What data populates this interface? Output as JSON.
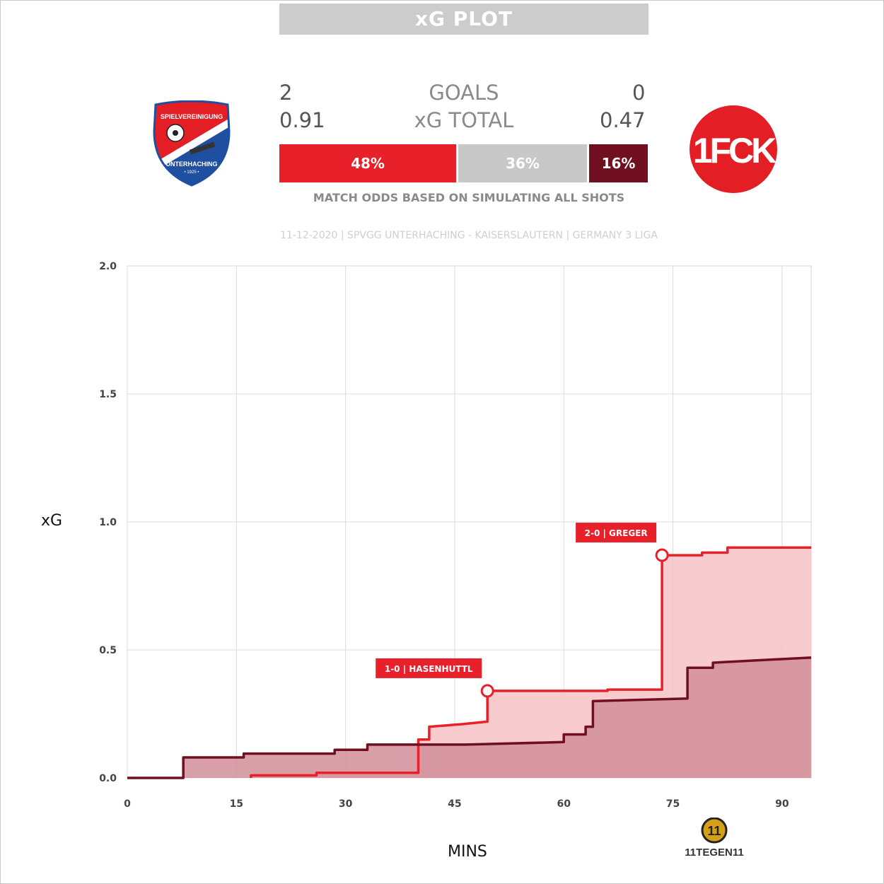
{
  "header": {
    "title": "xG PLOT"
  },
  "stats": {
    "home_goals": "2",
    "goals_label": "GOALS",
    "away_goals": "0",
    "home_xg": "0.91",
    "xg_label": "xG TOTAL",
    "away_xg": "0.47"
  },
  "odds": {
    "home_win": "48%",
    "draw": "36%",
    "away_win": "16%",
    "home_win_value": 48,
    "draw_value": 36,
    "away_win_value": 16,
    "caption": "MATCH ODDS BASED ON SIMULATING ALL SHOTS"
  },
  "match_info": "11-12-2020 | SPVGG UNTERHACHING - KAISERSLAUTERN | GERMANY 3 LIGA",
  "logos": {
    "home": {
      "name": "Unterhaching crest",
      "text_top": "SPIELVEREINIGUNG",
      "text_bottom": "UNTERHACHING",
      "year": "• 1925 •"
    },
    "away": {
      "name": "1. FC Kaiserslautern crest",
      "text": "1FCK"
    },
    "brand": {
      "name": "11tegen11 logo",
      "text": "11TEGEN11",
      "mark": "11"
    }
  },
  "colors": {
    "home": "#e8202a",
    "draw": "#c8c8c8",
    "away": "#6f0f20",
    "home_fill": "#f7c3c6",
    "away_fill": "#d28e99",
    "grid": "#dcdcdc"
  },
  "chart_data": {
    "type": "line",
    "xlabel": "MINS",
    "ylabel": "xG",
    "xlim": [
      0,
      94
    ],
    "ylim": [
      0,
      2
    ],
    "xticks": [
      0,
      15,
      30,
      45,
      60,
      75,
      90
    ],
    "yticks": [
      "0.0",
      "0.5",
      "1.0",
      "1.5",
      "2.0"
    ],
    "grid": true,
    "series": [
      {
        "team": "home",
        "step_points": [
          [
            17,
            0
          ],
          [
            17,
            0.01
          ],
          [
            26,
            0.01
          ],
          [
            26,
            0.02
          ],
          [
            40,
            0.02
          ],
          [
            40,
            0.15
          ],
          [
            41.5,
            0.15
          ],
          [
            41.5,
            0.2
          ],
          [
            46,
            0.21
          ],
          [
            49.5,
            0.22
          ],
          [
            49.5,
            0.34
          ],
          [
            66,
            0.34
          ],
          [
            66,
            0.345
          ],
          [
            73.5,
            0.345
          ],
          [
            73.5,
            0.87
          ],
          [
            79,
            0.87
          ],
          [
            79,
            0.88
          ],
          [
            82.5,
            0.88
          ],
          [
            82.5,
            0.9
          ],
          [
            94,
            0.9
          ]
        ]
      },
      {
        "team": "away",
        "step_points": [
          [
            0,
            0
          ],
          [
            7.7,
            0
          ],
          [
            7.7,
            0.08
          ],
          [
            16,
            0.08
          ],
          [
            16,
            0.095
          ],
          [
            28.5,
            0.095
          ],
          [
            28.5,
            0.11
          ],
          [
            33,
            0.11
          ],
          [
            33,
            0.13
          ],
          [
            46.5,
            0.13
          ],
          [
            60,
            0.14
          ],
          [
            60,
            0.17
          ],
          [
            63,
            0.17
          ],
          [
            63,
            0.2
          ],
          [
            64,
            0.2
          ],
          [
            64,
            0.3
          ],
          [
            77,
            0.31
          ],
          [
            77,
            0.43
          ],
          [
            80.5,
            0.43
          ],
          [
            80.5,
            0.45
          ],
          [
            87,
            0.46
          ],
          [
            94,
            0.47
          ]
        ]
      }
    ],
    "goals": [
      {
        "label": "1-0 | HASENHUTTL",
        "minute": 49.5,
        "xg": 0.34
      },
      {
        "label": "2-0 | GREGER",
        "minute": 73.5,
        "xg": 0.87
      }
    ]
  }
}
